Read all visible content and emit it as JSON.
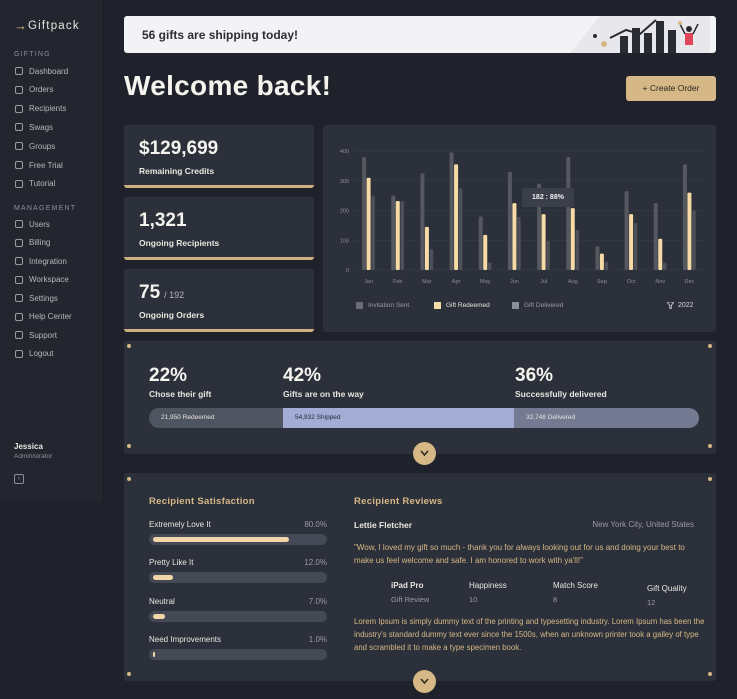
{
  "brand": {
    "name": "Giftpack"
  },
  "sidebar": {
    "section_gifting": "GIFTING",
    "section_management": "MANAGEMENT",
    "gifting_items": [
      {
        "label": "Dashboard",
        "icon": "dashboard-icon"
      },
      {
        "label": "Orders",
        "icon": "orders-icon"
      },
      {
        "label": "Recipients",
        "icon": "recipients-icon"
      },
      {
        "label": "Swags",
        "icon": "swags-icon"
      },
      {
        "label": "Groups",
        "icon": "groups-icon"
      },
      {
        "label": "Free Trial",
        "icon": "free-trial-icon"
      },
      {
        "label": "Tutorial",
        "icon": "tutorial-icon"
      }
    ],
    "management_items": [
      {
        "label": "Users",
        "icon": "users-icon"
      },
      {
        "label": "Billing",
        "icon": "billing-icon"
      },
      {
        "label": "Integration",
        "icon": "integration-icon"
      },
      {
        "label": "Workspace",
        "icon": "workspace-icon"
      },
      {
        "label": "Settings",
        "icon": "settings-icon"
      },
      {
        "label": "Help Center",
        "icon": "help-center-icon"
      },
      {
        "label": "Support",
        "icon": "support-icon"
      },
      {
        "label": "Logout",
        "icon": "logout-icon"
      }
    ],
    "user": {
      "name": "Jessica",
      "role": "Administrator"
    }
  },
  "banner": {
    "text": "56 gifts are shipping today!"
  },
  "header": {
    "title": "Welcome back!",
    "create_button": "+ Create Order"
  },
  "stats": {
    "credits": {
      "value": "$129,699",
      "label": "Remaining Credits"
    },
    "recipients": {
      "value": "1,321",
      "label": "Ongoing Recipients"
    },
    "orders": {
      "value": "75",
      "sub": "/ 192",
      "label": "Ongoing Orders"
    }
  },
  "chart_data": {
    "type": "bar",
    "categories": [
      "Jan",
      "Feb",
      "Mar",
      "Apr",
      "May",
      "Jun",
      "Jul",
      "Aug",
      "Sep",
      "Oct",
      "Nov",
      "Dec"
    ],
    "yticks": [
      0,
      100,
      200,
      300,
      400
    ],
    "ylim": [
      0,
      400
    ],
    "series": [
      {
        "name": "Invitation Sent",
        "color": "#5a5d65",
        "values": [
          380,
          250,
          325,
          395,
          180,
          330,
          290,
          380,
          80,
          265,
          225,
          355
        ]
      },
      {
        "name": "Gift Redeemed",
        "color": "#f6dba7",
        "values": [
          310,
          232,
          145,
          355,
          118,
          225,
          188,
          208,
          55,
          188,
          105,
          260
        ]
      },
      {
        "name": "Gift Delivered",
        "color": "#4a4d55",
        "values": [
          250,
          232,
          70,
          275,
          25,
          178,
          98,
          135,
          28,
          158,
          25,
          200
        ]
      }
    ],
    "tooltip": "182 : 88%",
    "filter_label": "2022"
  },
  "progress": {
    "items": [
      {
        "pct": "22%",
        "label": "Chose their gift",
        "bar_text": "21,950 Redeemed"
      },
      {
        "pct": "42%",
        "label": "Gifts are on the way",
        "bar_text": "54,932 Shipped"
      },
      {
        "pct": "36%",
        "label": "Successfully delivered",
        "bar_text": "32,748 Delivered"
      }
    ]
  },
  "satisfaction": {
    "title": "Recipient Satisfaction",
    "items": [
      {
        "label": "Extremely Love It",
        "pct": "80.0%",
        "value": 0.8
      },
      {
        "label": "Pretty Like It",
        "pct": "12.0%",
        "value": 0.12
      },
      {
        "label": "Neutral",
        "pct": "7.0%",
        "value": 0.07
      },
      {
        "label": "Need Improvements",
        "pct": "1.0%",
        "value": 0.01
      }
    ]
  },
  "reviews": {
    "title": "Recipient Reviews",
    "name": "Lettie Fletcher",
    "location": "New York City, United States",
    "quote": "\"Wow, I loved my gift so much - thank you for always looking out for us and doing your best to make us feel welcome and safe. I am honored to work with ya'll!\"",
    "product": {
      "label": "iPad Pro",
      "value": "Gift Review"
    },
    "happiness": {
      "label": "Happiness",
      "value": "10"
    },
    "match": {
      "label": "Match Score",
      "value": "8"
    },
    "quality": {
      "label": "Gift Quality",
      "value": "12"
    },
    "body": "Lorem Ipsum is simply dummy text of the printing and typesetting industry. Lorem Ipsum has been the industry's standard dummy text ever since the 1500s, when an unknown printer took a galley of type and scrambled it to make a type specimen book."
  },
  "colors": {
    "accent": "#d5b886",
    "panel": "#2c303a",
    "background": "#1f222b"
  }
}
